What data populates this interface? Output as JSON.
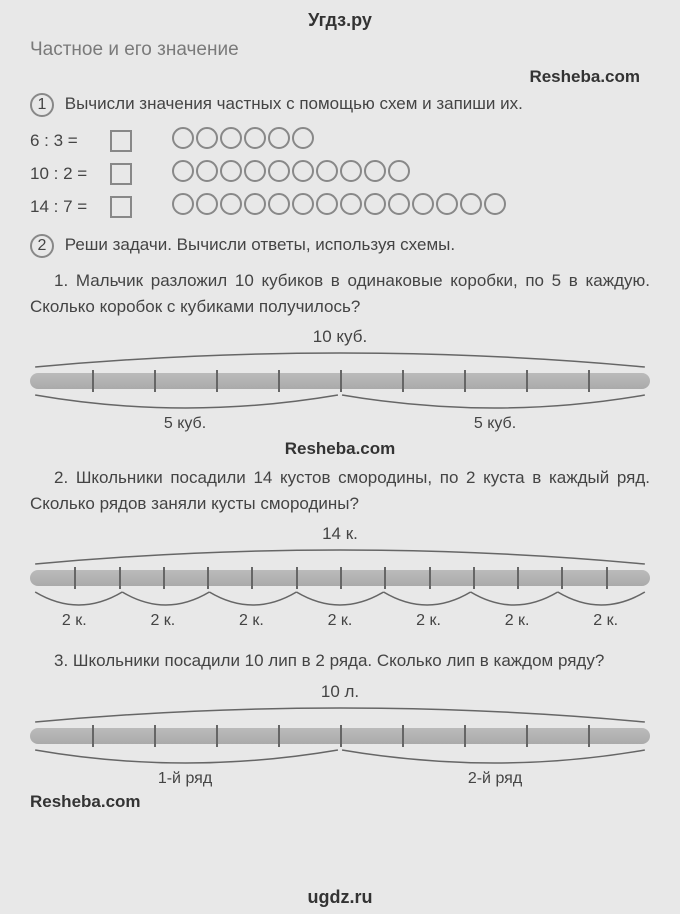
{
  "header": {
    "site_top": "Угдз.ру",
    "footer": "ugdz.ru"
  },
  "watermarks": {
    "r1": "Resheba.com",
    "c1": "Resheba.com",
    "l1": "Resheba.com"
  },
  "title": "Частное и его значение",
  "task1": {
    "num": "1",
    "text": "Вычисли значения частных с помощью схем и запиши их.",
    "eq": [
      {
        "label": "6 : 3 =",
        "circles": 6
      },
      {
        "label": "10 : 2 =",
        "circles": 10
      },
      {
        "label": "14 : 7 =",
        "circles": 14
      }
    ]
  },
  "task2": {
    "num": "2",
    "intro": "Реши задачи. Вычисли ответы, используя схемы.",
    "p1": {
      "text": "1. Мальчик разложил 10 кубиков в одинаковые коробки, по 5 в каждую. Сколько коробок с кубиками получилось?",
      "top": "10 куб.",
      "parts": [
        "5 куб.",
        "5 куб."
      ],
      "ticks": 10
    },
    "p2": {
      "text": "2. Школьники посадили 14 кустов смородины, по 2 куста в каждый ряд. Сколько рядов заняли кусты смородины?",
      "top": "14 к.",
      "parts": [
        "2 к.",
        "2 к.",
        "2 к.",
        "2 к.",
        "2 к.",
        "2 к.",
        "2 к."
      ],
      "ticks": 14
    },
    "p3": {
      "text": "3. Школьники посадили 10 лип в 2 ряда. Сколько лип в каждом ряду?",
      "top": "10 л.",
      "parts": [
        "1-й ряд",
        "2-й ряд"
      ],
      "ticks": 10
    }
  },
  "style": {
    "bg": "#e8e8e8",
    "text_color": "#444",
    "border_color": "#888",
    "bar_color": "#aaa",
    "tick_color": "#666",
    "font_size": 17
  }
}
